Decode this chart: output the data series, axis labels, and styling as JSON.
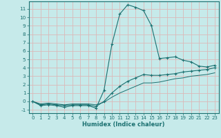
{
  "xlabel": "Humidex (Indice chaleur)",
  "bg_color": "#c6eaea",
  "grid_color": "#dbb8b8",
  "line_color": "#1a7070",
  "xlim": [
    -0.5,
    23.5
  ],
  "ylim": [
    -1.4,
    11.9
  ],
  "yticks": [
    -1,
    0,
    1,
    2,
    3,
    4,
    5,
    6,
    7,
    8,
    9,
    10,
    11
  ],
  "xticks": [
    0,
    1,
    2,
    3,
    4,
    5,
    6,
    7,
    8,
    9,
    10,
    11,
    12,
    13,
    14,
    15,
    16,
    17,
    18,
    19,
    20,
    21,
    22,
    23
  ],
  "line1_x": [
    0,
    1,
    2,
    3,
    4,
    5,
    6,
    7,
    8,
    9,
    10,
    11,
    12,
    13,
    14,
    15,
    16,
    17,
    18,
    19,
    20,
    21,
    22,
    23
  ],
  "line1_y": [
    0.0,
    -0.5,
    -0.4,
    -0.5,
    -0.7,
    -0.5,
    -0.5,
    -0.5,
    -0.8,
    1.3,
    6.8,
    10.4,
    11.5,
    11.2,
    10.8,
    9.0,
    5.1,
    5.2,
    5.3,
    4.9,
    4.7,
    4.2,
    4.1,
    4.3
  ],
  "line2_x": [
    0,
    1,
    2,
    3,
    4,
    5,
    6,
    7,
    8,
    9,
    10,
    11,
    12,
    13,
    14,
    15,
    16,
    17,
    18,
    19,
    20,
    21,
    22,
    23
  ],
  "line2_y": [
    0.0,
    -0.4,
    -0.3,
    -0.4,
    -0.5,
    -0.4,
    -0.4,
    -0.4,
    -0.6,
    0.0,
    1.0,
    1.8,
    2.4,
    2.8,
    3.2,
    3.1,
    3.1,
    3.2,
    3.3,
    3.5,
    3.6,
    3.7,
    3.8,
    4.0
  ],
  "line3_x": [
    0,
    1,
    2,
    3,
    4,
    5,
    6,
    7,
    8,
    9,
    10,
    11,
    12,
    13,
    14,
    15,
    16,
    17,
    18,
    19,
    20,
    21,
    22,
    23
  ],
  "line3_y": [
    0.0,
    -0.3,
    -0.2,
    -0.3,
    -0.4,
    -0.3,
    -0.3,
    -0.3,
    -0.4,
    -0.1,
    0.5,
    1.0,
    1.4,
    1.8,
    2.2,
    2.2,
    2.3,
    2.5,
    2.7,
    2.8,
    3.0,
    3.1,
    3.2,
    3.4
  ]
}
